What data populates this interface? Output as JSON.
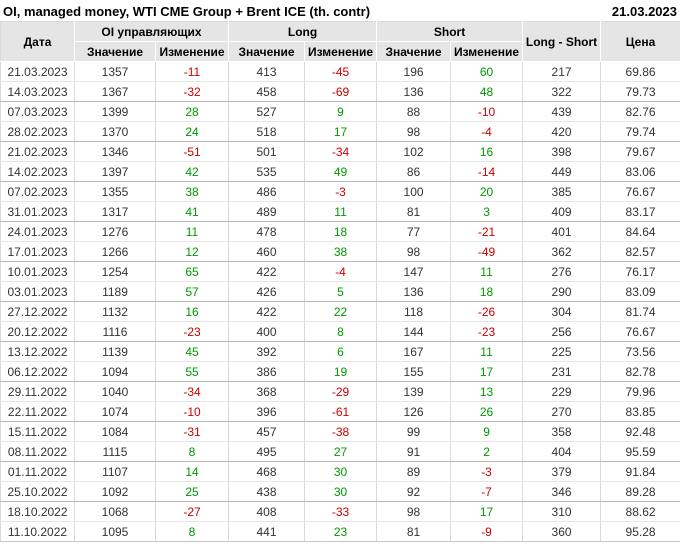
{
  "titlebar": {
    "title": "OI, managed money, WTI CME Group + Brent ICE (th. contr)",
    "report_date": "21.03.2023"
  },
  "table": {
    "header": {
      "date_col": "Дата",
      "group_oi": "OI управляющих",
      "group_long": "Long",
      "group_short": "Short",
      "long_short_col": "Long - Short",
      "price_col": "Цена",
      "sub_value": "Значение",
      "sub_change": "Изменение"
    },
    "col_names": [
      "cell-date",
      "cell-oi-value",
      "cell-oi-change",
      "cell-long-value",
      "cell-long-change",
      "cell-short-value",
      "cell-short-change",
      "cell-long-short",
      "cell-price"
    ],
    "change_cols": [
      2,
      4,
      6
    ],
    "colors": {
      "positive": "#009900",
      "negative": "#cc0000",
      "header_bg": "#e5e5e5"
    },
    "rows": [
      [
        "21.03.2023",
        "1357",
        "-11",
        "413",
        "-45",
        "196",
        "60",
        "217",
        "69.86"
      ],
      [
        "14.03.2023",
        "1367",
        "-32",
        "458",
        "-69",
        "136",
        "48",
        "322",
        "79.73"
      ],
      [
        "07.03.2023",
        "1399",
        "28",
        "527",
        "9",
        "88",
        "-10",
        "439",
        "82.76"
      ],
      [
        "28.02.2023",
        "1370",
        "24",
        "518",
        "17",
        "98",
        "-4",
        "420",
        "79.74"
      ],
      [
        "21.02.2023",
        "1346",
        "-51",
        "501",
        "-34",
        "102",
        "16",
        "398",
        "79.67"
      ],
      [
        "14.02.2023",
        "1397",
        "42",
        "535",
        "49",
        "86",
        "-14",
        "449",
        "83.06"
      ],
      [
        "07.02.2023",
        "1355",
        "38",
        "486",
        "-3",
        "100",
        "20",
        "385",
        "76.67"
      ],
      [
        "31.01.2023",
        "1317",
        "41",
        "489",
        "11",
        "81",
        "3",
        "409",
        "83.17"
      ],
      [
        "24.01.2023",
        "1276",
        "11",
        "478",
        "18",
        "77",
        "-21",
        "401",
        "84.64"
      ],
      [
        "17.01.2023",
        "1266",
        "12",
        "460",
        "38",
        "98",
        "-49",
        "362",
        "82.57"
      ],
      [
        "10.01.2023",
        "1254",
        "65",
        "422",
        "-4",
        "147",
        "11",
        "276",
        "76.17"
      ],
      [
        "03.01.2023",
        "1189",
        "57",
        "426",
        "5",
        "136",
        "18",
        "290",
        "83.09"
      ],
      [
        "27.12.2022",
        "1132",
        "16",
        "422",
        "22",
        "118",
        "-26",
        "304",
        "81.74"
      ],
      [
        "20.12.2022",
        "1116",
        "-23",
        "400",
        "8",
        "144",
        "-23",
        "256",
        "76.67"
      ],
      [
        "13.12.2022",
        "1139",
        "45",
        "392",
        "6",
        "167",
        "11",
        "225",
        "73.56"
      ],
      [
        "06.12.2022",
        "1094",
        "55",
        "386",
        "19",
        "155",
        "17",
        "231",
        "82.78"
      ],
      [
        "29.11.2022",
        "1040",
        "-34",
        "368",
        "-29",
        "139",
        "13",
        "229",
        "79.96"
      ],
      [
        "22.11.2022",
        "1074",
        "-10",
        "396",
        "-61",
        "126",
        "26",
        "270",
        "83.85"
      ],
      [
        "15.11.2022",
        "1084",
        "-31",
        "457",
        "-38",
        "99",
        "9",
        "358",
        "92.48"
      ],
      [
        "08.11.2022",
        "1115",
        "8",
        "495",
        "27",
        "91",
        "2",
        "404",
        "95.59"
      ],
      [
        "01.11.2022",
        "1107",
        "14",
        "468",
        "30",
        "89",
        "-3",
        "379",
        "91.84"
      ],
      [
        "25.10.2022",
        "1092",
        "25",
        "438",
        "30",
        "92",
        "-7",
        "346",
        "89.28"
      ],
      [
        "18.10.2022",
        "1068",
        "-27",
        "408",
        "-33",
        "98",
        "17",
        "310",
        "88.62"
      ],
      [
        "11.10.2022",
        "1095",
        "8",
        "441",
        "23",
        "81",
        "-9",
        "360",
        "95.28"
      ]
    ]
  }
}
